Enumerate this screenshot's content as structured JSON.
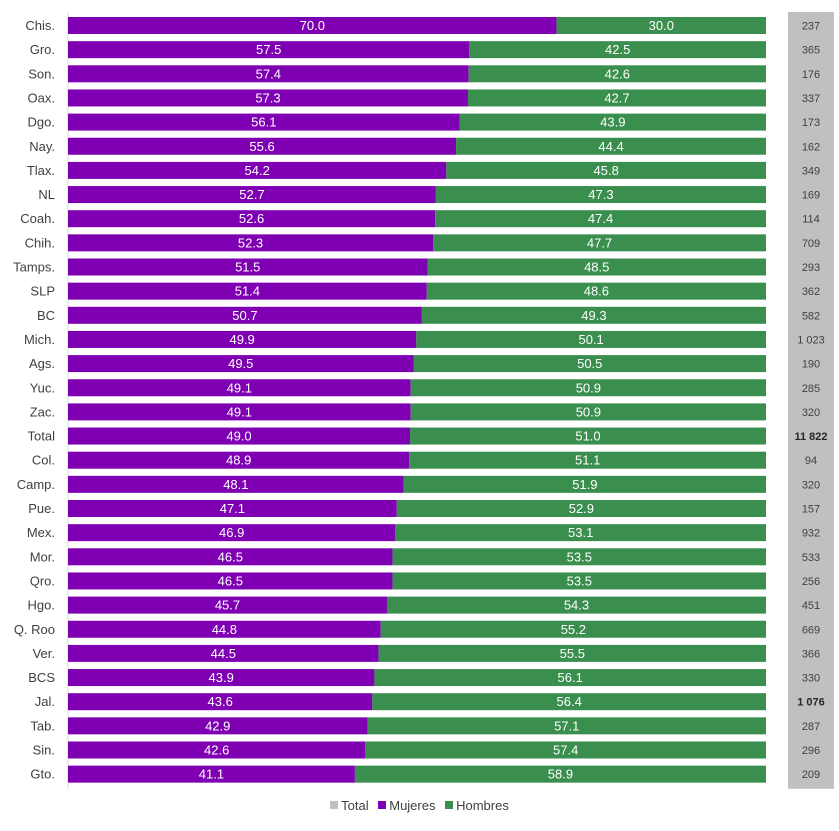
{
  "chart_data": {
    "type": "bar",
    "orientation": "horizontal",
    "stacked": "percent",
    "categories": [
      "Chis.",
      "Gro.",
      "Son.",
      "Oax.",
      "Dgo.",
      "Nay.",
      "Tlax.",
      "NL",
      "Coah.",
      "Chih.",
      "Tamps.",
      "SLP",
      "BC",
      "Mich.",
      "Ags.",
      "Yuc.",
      "Zac.",
      "Total",
      "Col.",
      "Camp.",
      "Pue.",
      "Mex.",
      "Mor.",
      "Qro.",
      "Hgo.",
      "Q. Roo",
      "Ver.",
      "BCS",
      "Jal.",
      "Tab.",
      "Sin.",
      "Gto."
    ],
    "series": [
      {
        "name": "Mujeres",
        "color": "#7f00b2",
        "values": [
          70.0,
          57.5,
          57.4,
          57.3,
          56.1,
          55.6,
          54.2,
          52.7,
          52.6,
          52.3,
          51.5,
          51.4,
          50.7,
          49.9,
          49.5,
          49.1,
          49.1,
          49.0,
          48.9,
          48.1,
          47.1,
          46.9,
          46.5,
          46.5,
          45.7,
          44.8,
          44.5,
          43.9,
          43.6,
          42.9,
          42.6,
          41.1
        ],
        "labels": [
          "70.0",
          "57.5",
          "57.4",
          "57.3",
          "56.1",
          "55.6",
          "54.2",
          "52.7",
          "52.6",
          "52.3",
          "51.5",
          "51.4",
          "50.7",
          "49.9",
          "49.5",
          "49.1",
          "49.1",
          "49.0",
          "48.9",
          "48.1",
          "47.1",
          "46.9",
          "46.5",
          "46.5",
          "45.7",
          "44.8",
          "44.5",
          "43.9",
          "43.6",
          "42.9",
          "42.6",
          "41.1"
        ]
      },
      {
        "name": "Hombres",
        "color": "#3a8f4f",
        "values": [
          30.0,
          42.5,
          42.6,
          42.7,
          43.9,
          44.4,
          45.8,
          47.3,
          47.4,
          47.7,
          48.5,
          48.6,
          49.3,
          50.1,
          50.5,
          50.9,
          50.9,
          51.0,
          51.1,
          51.9,
          52.9,
          53.1,
          53.5,
          53.5,
          54.3,
          55.2,
          55.5,
          56.1,
          56.4,
          57.1,
          57.4,
          58.9
        ],
        "labels": [
          "30.0",
          "42.5",
          "42.6",
          "42.7",
          "43.9",
          "44.4",
          "45.8",
          "47.3",
          "47.4",
          "47.7",
          "48.5",
          "48.6",
          "49.3",
          "50.1",
          "50.5",
          "50.9",
          "50.9",
          "51.0",
          "51.1",
          "51.9",
          "52.9",
          "53.1",
          "53.5",
          "53.5",
          "54.3",
          "55.2",
          "55.5",
          "56.1",
          "56.4",
          "57.1",
          "57.4",
          "58.9"
        ]
      },
      {
        "name": "Total",
        "color": "#c0c0c0",
        "values": [
          237,
          365,
          176,
          337,
          173,
          162,
          349,
          169,
          114,
          709,
          293,
          362,
          582,
          1023,
          190,
          285,
          320,
          11822,
          94,
          320,
          157,
          932,
          533,
          256,
          451,
          669,
          366,
          330,
          1076,
          287,
          296,
          209
        ],
        "labels": [
          "237",
          "365",
          "176",
          "337",
          "173",
          "162",
          "349",
          "169",
          "114",
          "709",
          "293",
          "362",
          "582",
          "1 023",
          "190",
          "285",
          "320",
          "11 822",
          "94",
          "320",
          "157",
          "932",
          "533",
          "256",
          "451",
          "669",
          "366",
          "330",
          "1 076",
          "287",
          "296",
          "209"
        ],
        "bold": [
          "Total",
          "Jal."
        ]
      }
    ],
    "xlim": [
      0,
      100
    ],
    "total_row_mujeres_label_color": "#c9a6e6",
    "total_row_hombres_label_color": "#c8ddc9",
    "legend": {
      "position": "bottom",
      "entries": [
        "Total",
        "Mujeres",
        "Hombres"
      ]
    },
    "title": "",
    "xlabel": "",
    "ylabel": ""
  }
}
